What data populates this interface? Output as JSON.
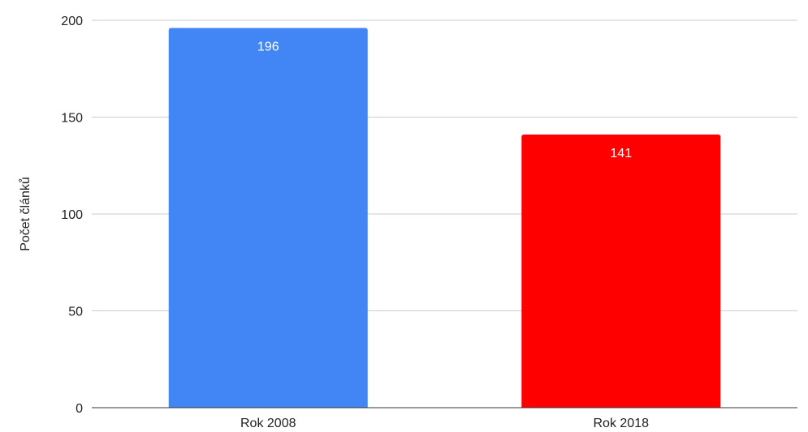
{
  "chart_data": {
    "type": "bar",
    "title": "",
    "xlabel": "",
    "ylabel": "Počet článků",
    "categories": [
      "Rok 2008",
      "Rok 2018"
    ],
    "values": [
      196,
      141
    ],
    "data_labels": [
      "196",
      "141"
    ],
    "bar_colors": [
      "#4285f4",
      "#ff0000"
    ],
    "ylim": [
      0,
      200
    ],
    "yticks": [
      0,
      50,
      100,
      150,
      200
    ],
    "grid": true,
    "legend": "none"
  }
}
